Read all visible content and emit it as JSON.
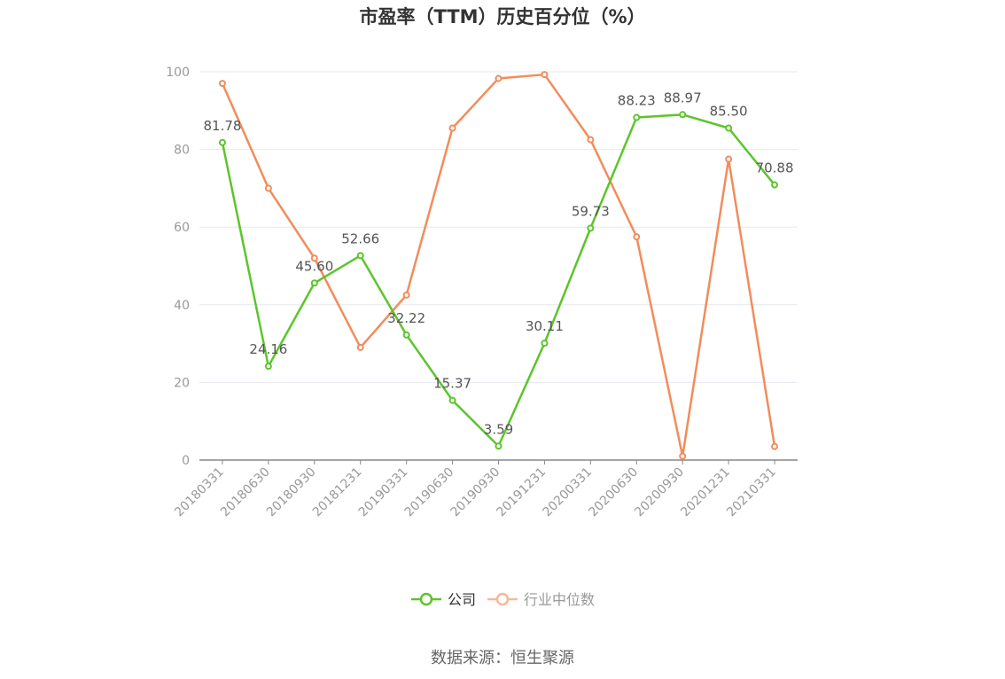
{
  "source_text": "数据来源：恒生聚源",
  "colors": {
    "company": "#5cc52b",
    "industry": "#f28c5b",
    "industry_legend": "#f7b89a",
    "grid": "#e6e8ee",
    "axis": "#888888"
  },
  "chart_data": {
    "type": "line",
    "title": "市盈率（TTM）历史百分位（%）",
    "xlabel": "",
    "ylabel": "",
    "ylim": [
      0,
      100
    ],
    "yticks": [
      0,
      20,
      40,
      60,
      80,
      100
    ],
    "grid": true,
    "legend_position": "bottom",
    "categories": [
      "20180331",
      "20180630",
      "20180930",
      "20181231",
      "20190331",
      "20190630",
      "20190930",
      "20191231",
      "20200331",
      "20200630",
      "20200930",
      "20201231",
      "20210331"
    ],
    "series": [
      {
        "name": "公司",
        "values": [
          81.78,
          24.16,
          45.6,
          52.66,
          32.22,
          15.37,
          3.59,
          30.11,
          59.73,
          88.23,
          88.97,
          85.5,
          70.88
        ],
        "labels": [
          "81.78",
          "24.16",
          "45.60",
          "52.66",
          "32.22",
          "15.37",
          "3.59",
          "30.11",
          "59.73",
          "88.23",
          "88.97",
          "85.50",
          "70.88"
        ]
      },
      {
        "name": "行业中位数",
        "values": [
          97,
          70,
          52,
          29,
          42.5,
          85.5,
          98.3,
          99.3,
          82.5,
          57.5,
          1,
          77.5,
          3.5
        ]
      }
    ]
  }
}
